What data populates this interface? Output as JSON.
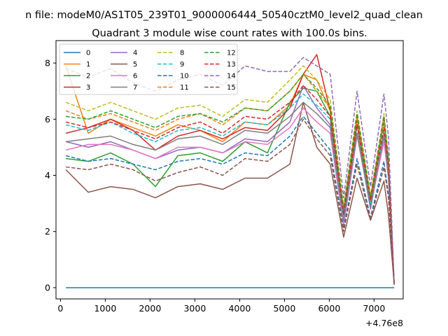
{
  "chart_data": {
    "type": "line",
    "suptitle": "n file: modeM0/AS1T05_239T01_9000006444_50540cztM0_level2_quad_clean",
    "title": "Quadrant 3 module wise count rates with 100.0s bins.",
    "xlabel": "",
    "ylabel": "",
    "x_offset_label": "+4.76e8",
    "xlim": [
      -100,
      7650
    ],
    "ylim": [
      -0.4,
      8.8
    ],
    "xticks": [
      0,
      1000,
      2000,
      3000,
      4000,
      5000,
      6000,
      7000
    ],
    "xtick_labels": [
      "0",
      "1000",
      "2000",
      "3000",
      "4000",
      "5000",
      "6000",
      "7000"
    ],
    "yticks": [
      0,
      2,
      4,
      6,
      8
    ],
    "ytick_labels": [
      "0",
      "2",
      "4",
      "6",
      "8"
    ],
    "x": [
      120,
      620,
      1120,
      1620,
      2120,
      2620,
      3120,
      3620,
      4120,
      4620,
      5120,
      5420,
      5720,
      6020,
      6320,
      6620,
      6920,
      7220,
      7320,
      7450
    ],
    "legend_location": "upper-left",
    "series": [
      {
        "name": "0",
        "color": "#1f77b4",
        "dashed": false,
        "values": [
          0,
          0,
          0,
          0,
          0,
          0,
          0,
          0,
          0,
          0,
          0,
          0,
          0,
          0,
          0,
          0,
          0,
          0,
          0,
          0
        ]
      },
      {
        "name": "1",
        "color": "#ff7f0e",
        "dashed": false,
        "values": [
          7.9,
          5.5,
          6.0,
          5.7,
          5.4,
          5.8,
          5.6,
          5.2,
          5.9,
          5.8,
          6.5,
          7.6,
          7.4,
          6.3,
          2.7,
          6.0,
          3.0,
          6.1,
          4.5,
          0.1
        ]
      },
      {
        "name": "2",
        "color": "#2ca02c",
        "dashed": false,
        "values": [
          4.6,
          4.5,
          4.8,
          4.4,
          3.6,
          4.7,
          4.8,
          4.5,
          5.2,
          4.8,
          6.6,
          7.1,
          7.0,
          6.1,
          2.4,
          5.8,
          2.9,
          6.0,
          4.2,
          0.1
        ]
      },
      {
        "name": "3",
        "color": "#d62728",
        "dashed": false,
        "values": [
          5.5,
          5.7,
          6.0,
          5.6,
          4.9,
          5.4,
          5.6,
          5.3,
          5.7,
          5.6,
          6.4,
          7.6,
          8.3,
          6.3,
          2.5,
          6.1,
          3.2,
          6.0,
          4.3,
          0.1
        ]
      },
      {
        "name": "4",
        "color": "#9467bd",
        "dashed": false,
        "values": [
          5.2,
          5.0,
          5.2,
          4.9,
          4.6,
          4.9,
          5.0,
          4.8,
          5.3,
          5.2,
          5.9,
          7.2,
          6.4,
          5.8,
          2.3,
          5.5,
          2.8,
          5.4,
          4.0,
          0.1
        ]
      },
      {
        "name": "5",
        "color": "#8c564b",
        "dashed": false,
        "values": [
          4.2,
          3.4,
          3.6,
          3.5,
          3.2,
          3.6,
          3.7,
          3.5,
          3.9,
          3.9,
          4.4,
          6.6,
          5.0,
          4.4,
          1.8,
          3.9,
          2.4,
          3.8,
          2.6,
          0.1
        ]
      },
      {
        "name": "6",
        "color": "#e377c2",
        "dashed": false,
        "values": [
          4.9,
          5.1,
          5.1,
          4.9,
          4.6,
          5.0,
          5.0,
          4.8,
          5.2,
          5.1,
          5.7,
          6.4,
          5.9,
          5.5,
          2.2,
          5.4,
          2.9,
          5.2,
          3.9,
          0.1
        ]
      },
      {
        "name": "7",
        "color": "#7f7f7f",
        "dashed": false,
        "values": [
          5.2,
          5.3,
          5.4,
          5.1,
          4.9,
          5.3,
          5.4,
          5.1,
          5.6,
          5.5,
          6.1,
          6.6,
          6.2,
          5.7,
          2.4,
          5.5,
          2.9,
          5.5,
          4.0,
          0.1
        ]
      },
      {
        "name": "8",
        "color": "#bcbd22",
        "dashed": true,
        "values": [
          6.6,
          6.3,
          6.6,
          6.3,
          6.0,
          6.4,
          6.5,
          6.1,
          6.7,
          6.6,
          7.4,
          7.9,
          7.4,
          6.7,
          2.9,
          6.3,
          3.3,
          6.2,
          4.6,
          0.1
        ]
      },
      {
        "name": "9",
        "color": "#17becf",
        "dashed": true,
        "values": [
          5.8,
          5.6,
          5.9,
          5.5,
          5.2,
          5.6,
          5.7,
          5.4,
          5.9,
          5.8,
          6.4,
          6.9,
          6.5,
          6.0,
          2.5,
          5.8,
          3.0,
          5.7,
          4.2,
          0.1
        ]
      },
      {
        "name": "10",
        "color": "#1f77b4",
        "dashed": true,
        "values": [
          4.7,
          4.5,
          4.6,
          4.4,
          4.2,
          4.5,
          4.6,
          4.4,
          4.8,
          4.7,
          5.4,
          6.1,
          5.5,
          4.9,
          2.1,
          4.6,
          2.5,
          4.5,
          3.3,
          0.1
        ]
      },
      {
        "name": "11",
        "color": "#ff7f0e",
        "dashed": true,
        "values": [
          6.3,
          6.0,
          6.2,
          5.9,
          5.6,
          6.0,
          6.2,
          5.8,
          6.4,
          6.3,
          7.0,
          7.6,
          7.0,
          6.4,
          2.8,
          6.1,
          3.2,
          6.0,
          4.5,
          0.1
        ]
      },
      {
        "name": "12",
        "color": "#2ca02c",
        "dashed": true,
        "values": [
          6.1,
          6.0,
          6.3,
          6.0,
          5.7,
          6.1,
          6.2,
          5.9,
          6.4,
          6.3,
          7.0,
          7.6,
          7.1,
          6.5,
          2.8,
          6.2,
          3.2,
          6.1,
          4.6,
          0.1
        ]
      },
      {
        "name": "13",
        "color": "#d62728",
        "dashed": true,
        "values": [
          5.9,
          5.7,
          5.9,
          5.6,
          5.3,
          5.7,
          5.9,
          5.5,
          6.1,
          6.0,
          6.6,
          7.2,
          6.7,
          6.1,
          2.6,
          5.8,
          3.1,
          5.7,
          4.3,
          0.1
        ]
      },
      {
        "name": "14",
        "color": "#9467bd",
        "dashed": true,
        "values": [
          7.8,
          7.5,
          7.8,
          7.3,
          7.0,
          7.4,
          7.6,
          7.2,
          7.9,
          7.7,
          7.7,
          8.2,
          7.9,
          7.6,
          3.2,
          7.0,
          3.6,
          6.9,
          5.4,
          0.1
        ]
      },
      {
        "name": "15",
        "color": "#8c564b",
        "dashed": true,
        "values": [
          4.3,
          4.2,
          4.4,
          4.2,
          3.8,
          4.1,
          4.3,
          4.0,
          4.6,
          4.5,
          5.1,
          6.0,
          5.3,
          4.7,
          2.0,
          4.4,
          2.4,
          4.3,
          3.2,
          0.1
        ]
      }
    ]
  }
}
